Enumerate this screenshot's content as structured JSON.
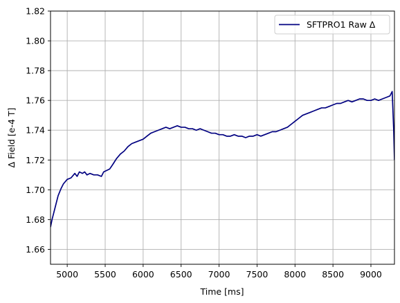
{
  "chart_data": {
    "type": "line",
    "xlabel": "Time [ms]",
    "ylabel": "Δ Field [e-4 T]",
    "xlim": [
      4780,
      9310
    ],
    "ylim": [
      1.65,
      1.82
    ],
    "xticks": [
      5000,
      5500,
      6000,
      6500,
      7000,
      7500,
      8000,
      8500,
      9000
    ],
    "yticks": [
      1.66,
      1.68,
      1.7,
      1.72,
      1.74,
      1.76,
      1.78,
      1.8,
      1.82
    ],
    "xtick_labels": [
      "5000",
      "5500",
      "6000",
      "6500",
      "7000",
      "7500",
      "8000",
      "8500",
      "9000"
    ],
    "ytick_labels": [
      "1.66",
      "1.68",
      "1.70",
      "1.72",
      "1.74",
      "1.76",
      "1.78",
      "1.80",
      "1.82"
    ],
    "grid": true,
    "legend_position": "top-right",
    "series": [
      {
        "name": "SFTPRO1 Raw Δ",
        "color": "#000080",
        "x": [
          4780,
          4800,
          4850,
          4880,
          4920,
          4950,
          5000,
          5050,
          5100,
          5130,
          5160,
          5200,
          5230,
          5260,
          5300,
          5350,
          5400,
          5450,
          5480,
          5520,
          5560,
          5600,
          5650,
          5700,
          5750,
          5800,
          5850,
          5900,
          5950,
          6000,
          6050,
          6100,
          6150,
          6200,
          6250,
          6300,
          6350,
          6400,
          6450,
          6500,
          6550,
          6600,
          6650,
          6700,
          6750,
          6800,
          6850,
          6900,
          6950,
          7000,
          7050,
          7100,
          7150,
          7200,
          7250,
          7300,
          7350,
          7400,
          7450,
          7500,
          7550,
          7600,
          7650,
          7700,
          7750,
          7800,
          7850,
          7900,
          7950,
          8000,
          8050,
          8100,
          8150,
          8200,
          8250,
          8300,
          8350,
          8400,
          8450,
          8500,
          8550,
          8600,
          8650,
          8700,
          8750,
          8800,
          8850,
          8900,
          8950,
          9000,
          9050,
          9100,
          9150,
          9200,
          9250,
          9280,
          9300,
          9310
        ],
        "y": [
          1.675,
          1.68,
          1.69,
          1.696,
          1.701,
          1.704,
          1.707,
          1.708,
          1.711,
          1.709,
          1.712,
          1.711,
          1.712,
          1.71,
          1.711,
          1.71,
          1.71,
          1.709,
          1.712,
          1.713,
          1.714,
          1.717,
          1.721,
          1.724,
          1.726,
          1.729,
          1.731,
          1.732,
          1.733,
          1.734,
          1.736,
          1.738,
          1.739,
          1.74,
          1.741,
          1.742,
          1.741,
          1.742,
          1.743,
          1.742,
          1.742,
          1.741,
          1.741,
          1.74,
          1.741,
          1.74,
          1.739,
          1.738,
          1.738,
          1.737,
          1.737,
          1.736,
          1.736,
          1.737,
          1.736,
          1.736,
          1.735,
          1.736,
          1.736,
          1.737,
          1.736,
          1.737,
          1.738,
          1.739,
          1.739,
          1.74,
          1.741,
          1.742,
          1.744,
          1.746,
          1.748,
          1.75,
          1.751,
          1.752,
          1.753,
          1.754,
          1.755,
          1.755,
          1.756,
          1.757,
          1.758,
          1.758,
          1.759,
          1.76,
          1.759,
          1.76,
          1.761,
          1.761,
          1.76,
          1.76,
          1.761,
          1.76,
          1.761,
          1.762,
          1.763,
          1.766,
          1.74,
          1.72
        ]
      }
    ]
  }
}
